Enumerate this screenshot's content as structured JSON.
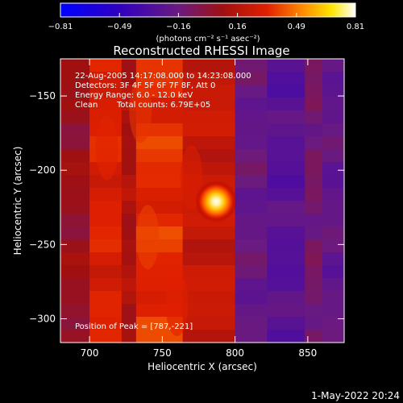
{
  "chart_data": {
    "type": "heatmap",
    "title": "Reconstructed RHESSI Image",
    "xlabel": "Heliocentric X (arcsec)",
    "ylabel": "Heliocentric Y (arcsec)",
    "xlim": [
      680,
      875
    ],
    "ylim": [
      -316,
      -125
    ],
    "x_ticks": [
      700,
      750,
      800,
      850
    ],
    "y_ticks": [
      -150,
      -200,
      -250,
      -300
    ],
    "colorbar": {
      "ticks": [
        "-0.81",
        "-0.49",
        "-0.16",
        "0.16",
        "0.49",
        "0.81"
      ],
      "range": [
        -0.81,
        0.81
      ],
      "units": "(photons cm⁻² s⁻¹ asec⁻²)",
      "colormap": "blue-purple-red-yellow-white"
    },
    "annotations": {
      "time": "22-Aug-2005 14:17:08.000 to 14:23:08.000",
      "detectors": "Detectors: 3F 4F 5F 6F 7F 8F, Att 0",
      "energy": "Energy Range: 6.0 - 12.0 keV",
      "method": "Clean",
      "counts": "Total counts: 6.79E+05",
      "peak": "Position of Peak = [787,-221]"
    },
    "peak": {
      "x": 787,
      "y": -221,
      "value": 0.81
    },
    "background_bands": [
      {
        "x_from": 680,
        "x_to": 700,
        "level": 0.05
      },
      {
        "x_from": 700,
        "x_to": 722,
        "level": 0.3
      },
      {
        "x_from": 722,
        "x_to": 732,
        "level": 0.12
      },
      {
        "x_from": 732,
        "x_to": 764,
        "level": 0.34
      },
      {
        "x_from": 764,
        "x_to": 800,
        "level": 0.22
      },
      {
        "x_from": 800,
        "x_to": 822,
        "level": -0.18
      },
      {
        "x_from": 822,
        "x_to": 848,
        "level": -0.26
      },
      {
        "x_from": 848,
        "x_to": 860,
        "level": -0.12
      },
      {
        "x_from": 860,
        "x_to": 875,
        "level": -0.2
      }
    ]
  },
  "footer": {
    "date": "1-May-2022 20:24"
  }
}
